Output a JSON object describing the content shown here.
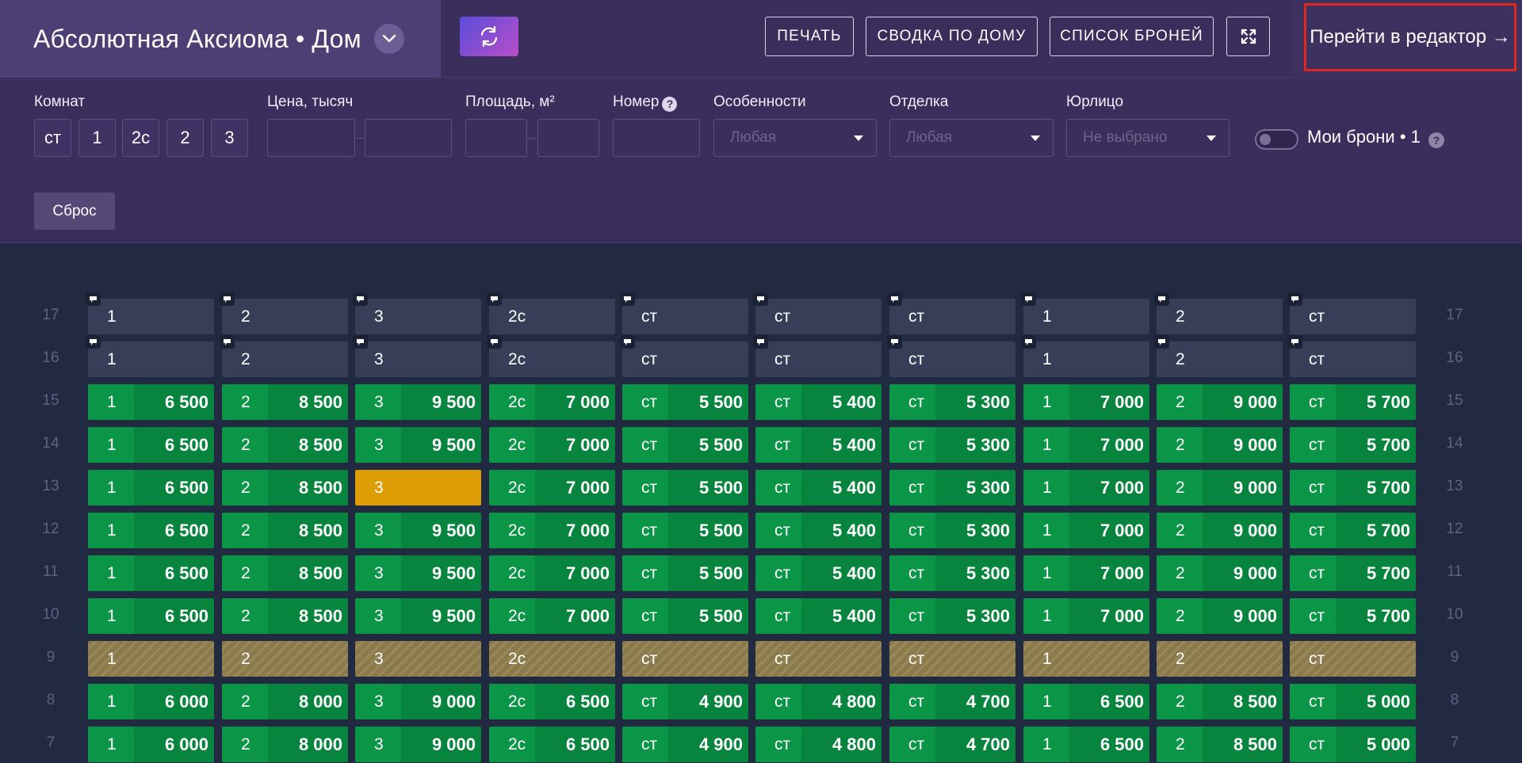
{
  "header": {
    "title": "Абсолютная Аксиома • Дом",
    "buttons": {
      "print": "ПЕЧАТЬ",
      "summary": "СВОДКА ПО ДОМУ",
      "bookings": "СПИСОК БРОНЕЙ"
    },
    "editor_link": "Перейти в редактор →",
    "marker": "1"
  },
  "filters": {
    "rooms_label": "Комнат",
    "rooms_options": [
      "ст",
      "1",
      "2с",
      "2",
      "3"
    ],
    "price_label": "Цена, тысяч",
    "area_label": "Площадь, м²",
    "number_label": "Номер",
    "features_label": "Особенности",
    "features_value": "Любая",
    "finish_label": "Отделка",
    "finish_value": "Любая",
    "legal_label": "Юрлицо",
    "legal_value": "Не выбрано",
    "my_bookings_label": "Мои брони • 1",
    "reset": "Сброс"
  },
  "columns": [
    "1",
    "2",
    "3",
    "2с",
    "ст",
    "ст",
    "ст",
    "1",
    "2",
    "ст"
  ],
  "floors": [
    {
      "floor": "17",
      "status": "empty",
      "comment": true,
      "prices": []
    },
    {
      "floor": "16",
      "status": "empty",
      "comment": true,
      "prices": []
    },
    {
      "floor": "15",
      "status": "sale",
      "prices": [
        "6 500",
        "8 500",
        "9 500",
        "7 000",
        "5 500",
        "5 400",
        "5 300",
        "7 000",
        "9 000",
        "5 700"
      ]
    },
    {
      "floor": "14",
      "status": "sale",
      "prices": [
        "6 500",
        "8 500",
        "9 500",
        "7 000",
        "5 500",
        "5 400",
        "5 300",
        "7 000",
        "9 000",
        "5 700"
      ]
    },
    {
      "floor": "13",
      "status": "sale",
      "booked_index": 2,
      "prices": [
        "6 500",
        "8 500",
        "",
        "7 000",
        "5 500",
        "5 400",
        "5 300",
        "7 000",
        "9 000",
        "5 700"
      ]
    },
    {
      "floor": "12",
      "status": "sale",
      "prices": [
        "6 500",
        "8 500",
        "9 500",
        "7 000",
        "5 500",
        "5 400",
        "5 300",
        "7 000",
        "9 000",
        "5 700"
      ]
    },
    {
      "floor": "11",
      "status": "sale",
      "prices": [
        "6 500",
        "8 500",
        "9 500",
        "7 000",
        "5 500",
        "5 400",
        "5 300",
        "7 000",
        "9 000",
        "5 700"
      ]
    },
    {
      "floor": "10",
      "status": "sale",
      "prices": [
        "6 500",
        "8 500",
        "9 500",
        "7 000",
        "5 500",
        "5 400",
        "5 300",
        "7 000",
        "9 000",
        "5 700"
      ]
    },
    {
      "floor": "9",
      "status": "hatch",
      "prices": []
    },
    {
      "floor": "8",
      "status": "sale",
      "prices": [
        "6 000",
        "8 000",
        "9 000",
        "6 500",
        "4 900",
        "4 800",
        "4 700",
        "6 500",
        "8 500",
        "5 000"
      ]
    },
    {
      "floor": "7",
      "status": "sale",
      "prices": [
        "6 000",
        "8 000",
        "9 000",
        "6 500",
        "4 900",
        "4 800",
        "4 700",
        "6 500",
        "8 500",
        "5 000"
      ]
    }
  ],
  "colors": {
    "sale": "#07853e",
    "booked": "#dc9d05",
    "empty": "#363e58",
    "accent": "#e1261c"
  }
}
